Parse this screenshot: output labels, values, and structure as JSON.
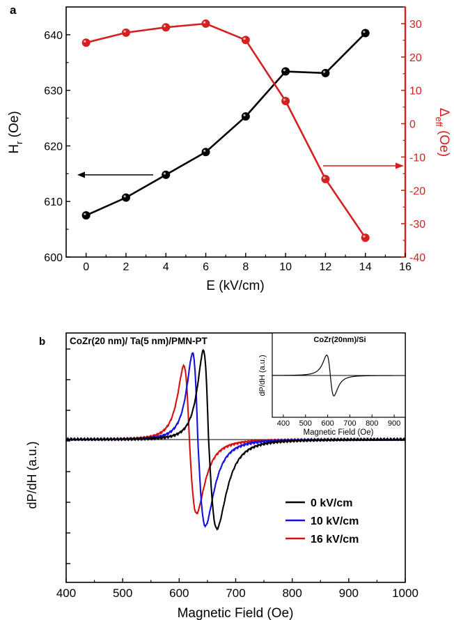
{
  "panel_a": {
    "label": "a",
    "arrow_color_left": "#000000",
    "arrow_color_right": "#d42020"
  },
  "panel_b": {
    "label": "b",
    "sample_title": "CoZr(20 nm)/ Ta(5 nm)/PMN-PT",
    "inset_title": "CoZr(20nm)/Si"
  },
  "chart_data": [
    {
      "type": "line",
      "panel": "a",
      "x": [
        0,
        2,
        4,
        6,
        8,
        10,
        12,
        14
      ],
      "xlabel": "E (kV/cm)",
      "xlim": [
        -1,
        16
      ],
      "xticks": [
        "0",
        "2",
        "4",
        "6",
        "8",
        "10",
        "12",
        "14",
        "16"
      ],
      "ylabel_left": "H",
      "ylabel_left_sub": "r",
      "ylabel_left_unit": " (Oe)",
      "ylim_left": [
        600,
        645
      ],
      "yticks_left": [
        "600",
        "610",
        "620",
        "630",
        "640"
      ],
      "ylabel_right": "Δ",
      "ylabel_right_sub": "eff",
      "ylabel_right_unit": " (Oe)",
      "ylim_right": [
        -40,
        35
      ],
      "yticks_right": [
        "-40",
        "-30",
        "-20",
        "-10",
        "0",
        "10",
        "20",
        "30"
      ],
      "series": [
        {
          "axis": "left",
          "color": "#000000",
          "values": [
            607.5,
            610.7,
            614.8,
            618.9,
            625.3,
            633.4,
            633.1,
            640.3
          ]
        },
        {
          "axis": "right",
          "color": "#d42020",
          "values": [
            24.3,
            27.3,
            28.9,
            30.0,
            25.1,
            6.8,
            -16.6,
            -34.2
          ]
        }
      ]
    },
    {
      "type": "line",
      "panel": "b",
      "xlabel": "Magnetic Field (Oe)",
      "ylabel": "dP/dH (a.u.)",
      "xlim": [
        400,
        1000
      ],
      "xticks": [
        "400",
        "500",
        "600",
        "700",
        "800",
        "900",
        "1000"
      ],
      "ylim": [
        -1.25,
        1.05
      ],
      "legend_position": "lower-right",
      "series": [
        {
          "name": "0   kV/cm",
          "color": "#000000",
          "center": 652,
          "half_width": 16,
          "amplitude": 0.99,
          "asymmetry": 1.6
        },
        {
          "name": "10 kV/cm",
          "color": "#1010e0",
          "center": 633,
          "half_width": 16,
          "amplitude": 0.96,
          "asymmetry": 1.45
        },
        {
          "name": "16 kV/cm",
          "color": "#d41010",
          "center": 618,
          "half_width": 17,
          "amplitude": 0.82,
          "asymmetry": 1.3
        }
      ],
      "inset": {
        "xlabel": "Magnetic Field (Oe)",
        "ylabel": "dP/dH (a.u.)",
        "xlim": [
          350,
          950
        ],
        "xticks": [
          "400",
          "500",
          "600",
          "700",
          "800",
          "900"
        ],
        "ylim": [
          -1.1,
          1.1
        ],
        "series": [
          {
            "color": "#000000",
            "center": 612,
            "half_width": 28,
            "amplitude": 1.0,
            "asymmetry": 1.0
          }
        ]
      }
    }
  ]
}
